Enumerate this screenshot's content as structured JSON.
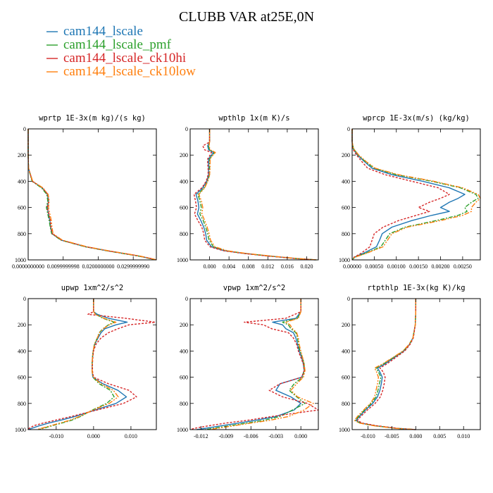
{
  "figure": {
    "title": "CLUBB VAR at25E,0N"
  },
  "legend": [
    {
      "label": "cam144_lscale",
      "color": "#1f77b4"
    },
    {
      "label": "cam144_lscale_pmf",
      "color": "#2ca02c"
    },
    {
      "label": "cam144_lscale_ck10hi",
      "color": "#d62728"
    },
    {
      "label": "cam144_lscale_ck10low",
      "color": "#ff7f0e"
    }
  ],
  "chart_data": [
    {
      "type": "line",
      "title": "wprtp  1E-3x(m kg)/(s kg)",
      "xlim": [
        0,
        0.0366
      ],
      "ylim": [
        0,
        1000
      ],
      "y_inverted": true,
      "xticks": [
        0,
        0.01,
        0.02,
        0.03
      ],
      "xtick_labels": [
        "0.0000000000",
        "0.0099999998",
        "0.0200000000",
        "0.0299999990"
      ],
      "yticks": [
        0,
        200,
        400,
        600,
        800,
        1000
      ],
      "ytick_labels": [
        "0",
        "200",
        "400",
        "600",
        "800",
        "1000"
      ],
      "y": [
        0,
        100,
        200,
        300,
        400,
        450,
        500,
        550,
        600,
        650,
        700,
        750,
        800,
        850,
        900,
        930,
        950,
        970,
        990,
        1000
      ],
      "series": [
        {
          "name": "cam144_lscale",
          "values": [
            0,
            0,
            0,
            0.0001,
            0.0012,
            0.004,
            0.0055,
            0.0058,
            0.0055,
            0.0058,
            0.0062,
            0.0064,
            0.0068,
            0.0095,
            0.0165,
            0.0225,
            0.027,
            0.0315,
            0.035,
            0.0366
          ]
        },
        {
          "name": "cam144_lscale_pmf",
          "values": [
            0,
            0,
            0,
            0.0001,
            0.0011,
            0.0038,
            0.0053,
            0.0056,
            0.0052,
            0.0056,
            0.006,
            0.0063,
            0.0067,
            0.0094,
            0.0163,
            0.0223,
            0.0268,
            0.0313,
            0.0348,
            0.0364
          ]
        },
        {
          "name": "cam144_lscale_ck10hi",
          "values": [
            0,
            0,
            0,
            0.0001,
            0.0012,
            0.0041,
            0.0056,
            0.0059,
            0.0054,
            0.0059,
            0.0063,
            0.0065,
            0.0069,
            0.0096,
            0.0166,
            0.0226,
            0.0271,
            0.0316,
            0.0351,
            0.0366
          ]
        },
        {
          "name": "cam144_lscale_ck10low",
          "values": [
            0,
            0,
            0,
            0.0001,
            0.0013,
            0.0042,
            0.0057,
            0.006,
            0.0058,
            0.0062,
            0.0066,
            0.0068,
            0.0071,
            0.0098,
            0.0168,
            0.0228,
            0.0273,
            0.0318,
            0.0352,
            0.0366
          ]
        }
      ]
    },
    {
      "type": "line",
      "title": "wpthlp  1x(m K)/s",
      "xlim": [
        -0.004,
        0.0224
      ],
      "ylim": [
        0,
        1000
      ],
      "y_inverted": true,
      "xticks": [
        0,
        0.004,
        0.008,
        0.012,
        0.016,
        0.02
      ],
      "xtick_labels": [
        "0.000",
        "0.004",
        "0.008",
        "0.012",
        "0.016",
        "0.020"
      ],
      "yticks": [
        0,
        200,
        400,
        600,
        800,
        1000
      ],
      "ytick_labels": [
        "0",
        "200",
        "400",
        "600",
        "800",
        "1000"
      ],
      "y": [
        0,
        100,
        130,
        160,
        180,
        200,
        230,
        260,
        300,
        350,
        400,
        450,
        500,
        550,
        600,
        650,
        700,
        750,
        800,
        850,
        900,
        930,
        950,
        970,
        990,
        1000
      ],
      "series": [
        {
          "name": "cam144_lscale",
          "values": [
            0,
            0,
            -0.0004,
            -0.0002,
            0.0008,
            0.0004,
            -0.0002,
            -0.0002,
            -0.0002,
            -0.0002,
            -0.0006,
            -0.0014,
            -0.0028,
            -0.0024,
            -0.0022,
            -0.0025,
            -0.0018,
            -0.0012,
            -0.0008,
            -0.0006,
            0.0004,
            0.003,
            0.007,
            0.012,
            0.018,
            0.0218
          ]
        },
        {
          "name": "cam144_lscale_pmf",
          "values": [
            0,
            0,
            -0.0002,
            0,
            0.0011,
            0.0006,
            0,
            0,
            0,
            0,
            -0.0004,
            -0.0011,
            -0.0024,
            -0.002,
            -0.0017,
            -0.002,
            -0.0013,
            -0.0008,
            -0.0004,
            -0.0001,
            0.0008,
            0.0033,
            0.0072,
            0.0122,
            0.018,
            0.022
          ]
        },
        {
          "name": "cam144_lscale_ck10hi",
          "values": [
            0,
            0,
            -0.0014,
            -0.001,
            0.0004,
            0.0001,
            -0.0004,
            -0.0004,
            -0.0003,
            -0.0003,
            -0.0007,
            -0.0016,
            -0.0032,
            -0.0029,
            -0.0027,
            -0.0031,
            -0.0024,
            -0.0016,
            -0.0012,
            -0.001,
            0.0001,
            0.0028,
            0.0068,
            0.0118,
            0.0178,
            0.0216
          ]
        },
        {
          "name": "cam144_lscale_ck10low",
          "values": [
            0,
            0,
            -0.0001,
            0.0001,
            0.0012,
            0.0007,
            0.0001,
            0.0001,
            0.0001,
            0,
            -0.0004,
            -0.001,
            -0.0022,
            -0.0017,
            -0.0014,
            -0.0016,
            -0.001,
            -0.0005,
            -0.0001,
            0.0002,
            0.0011,
            0.0036,
            0.0074,
            0.0124,
            0.0182,
            0.0222
          ]
        }
      ]
    },
    {
      "type": "line",
      "title": "wprcp  1E-3x(m/s) (kg/kg)",
      "xlim": [
        0,
        0.0029
      ],
      "ylim": [
        0,
        1000
      ],
      "y_inverted": true,
      "xticks": [
        0,
        0.0005,
        0.001,
        0.0015,
        0.002,
        0.0025
      ],
      "xtick_labels": [
        "0.00000",
        "0.00050",
        "0.00100",
        "0.00150",
        "0.00200",
        "0.00250"
      ],
      "yticks": [
        0,
        200,
        400,
        600,
        800,
        1000
      ],
      "ytick_labels": [
        "0",
        "200",
        "400",
        "600",
        "800",
        "1000"
      ],
      "y": [
        0,
        100,
        150,
        200,
        250,
        300,
        350,
        400,
        450,
        500,
        530,
        560,
        600,
        630,
        660,
        700,
        750,
        800,
        850,
        900,
        950,
        980,
        1000
      ],
      "series": [
        {
          "name": "cam144_lscale",
          "values": [
            0,
            0,
            2e-05,
            0.00012,
            0.00028,
            0.00045,
            0.0009,
            0.0016,
            0.0022,
            0.00255,
            0.0024,
            0.0022,
            0.002,
            0.0022,
            0.0018,
            0.00135,
            0.0009,
            0.00068,
            0.00062,
            0.00055,
            0.00025,
            5e-05,
            0
          ]
        },
        {
          "name": "cam144_lscale_pmf",
          "values": [
            0,
            0,
            3e-05,
            0.00014,
            0.0003,
            0.0005,
            0.001,
            0.0018,
            0.00245,
            0.0028,
            0.00285,
            0.0027,
            0.00255,
            0.0026,
            0.0024,
            0.0019,
            0.0012,
            0.00085,
            0.00075,
            0.00065,
            0.0003,
            6e-05,
            0
          ]
        },
        {
          "name": "cam144_lscale_ck10hi",
          "values": [
            0,
            0,
            1e-05,
            0.0001,
            0.00022,
            0.00035,
            0.00075,
            0.00135,
            0.00195,
            0.0022,
            0.002,
            0.00175,
            0.0015,
            0.00175,
            0.00145,
            0.00105,
            0.0007,
            0.0005,
            0.00045,
            0.0004,
            0.0002,
            4e-05,
            0
          ]
        },
        {
          "name": "cam144_lscale_ck10low",
          "values": [
            0,
            0,
            3e-05,
            0.00015,
            0.00032,
            0.00052,
            0.00105,
            0.00185,
            0.0025,
            0.00285,
            0.0029,
            0.0028,
            0.0027,
            0.0027,
            0.0025,
            0.002,
            0.00125,
            0.0009,
            0.0008,
            0.0007,
            0.00032,
            6e-05,
            0
          ]
        }
      ]
    },
    {
      "type": "line",
      "title": "upwp  1xm^2/s^2",
      "xlim": [
        -0.0175,
        0.0168
      ],
      "ylim": [
        0,
        1000
      ],
      "y_inverted": true,
      "xticks": [
        -0.01,
        0,
        0.01
      ],
      "xtick_labels": [
        "-0.010",
        "0.000",
        "0.010"
      ],
      "yticks": [
        0,
        200,
        400,
        600,
        800,
        1000
      ],
      "ytick_labels": [
        "0",
        "200",
        "400",
        "600",
        "800",
        "1000"
      ],
      "y": [
        0,
        100,
        120,
        150,
        180,
        200,
        230,
        260,
        300,
        350,
        400,
        450,
        500,
        550,
        600,
        650,
        700,
        750,
        800,
        850,
        900,
        930,
        950,
        970,
        990,
        1000
      ],
      "series": [
        {
          "name": "cam144_lscale",
          "values": [
            0,
            0,
            0.001,
            0.004,
            0.009,
            0.006,
            0.003,
            0.002,
            0.0012,
            0.0003,
            -0.0001,
            -0.0003,
            -0.0004,
            -0.0004,
            -0.0002,
            0.0025,
            0.0065,
            0.0088,
            0.006,
            0.0005,
            -0.005,
            -0.009,
            -0.012,
            -0.0145,
            -0.0165,
            -0.0175
          ]
        },
        {
          "name": "cam144_lscale_pmf",
          "values": [
            0,
            0,
            0.0006,
            0.0025,
            0.0055,
            0.004,
            0.0025,
            0.0015,
            0.001,
            0.0002,
            -0.0001,
            -0.0003,
            -0.0004,
            -0.0004,
            -0.0002,
            0.0015,
            0.0045,
            0.0055,
            0.0035,
            -0.0003,
            -0.0035,
            -0.006,
            -0.0085,
            -0.011,
            -0.0135,
            -0.0148
          ]
        },
        {
          "name": "cam144_lscale_ck10hi",
          "values": [
            0,
            0,
            -0.0015,
            0.0085,
            0.0165,
            0.0095,
            0.0065,
            0.004,
            0.002,
            0.0006,
            0,
            -0.0002,
            -0.0003,
            -0.0003,
            0,
            0.004,
            0.0095,
            0.0115,
            0.008,
            0.001,
            -0.006,
            -0.0105,
            -0.0135,
            -0.016,
            -0.0172,
            -0.0178
          ]
        },
        {
          "name": "cam144_lscale_ck10low",
          "values": [
            0,
            0,
            0.0005,
            0.0028,
            0.006,
            0.0042,
            0.0026,
            0.0016,
            0.001,
            0.0002,
            -0.0001,
            -0.0003,
            -0.0004,
            -0.0004,
            -0.0001,
            0.002,
            0.0053,
            0.0066,
            0.0042,
            -0.0001,
            -0.0038,
            -0.0065,
            -0.009,
            -0.0115,
            -0.014,
            -0.0152
          ]
        }
      ]
    },
    {
      "type": "line",
      "title": "vpwp  1xm^2/s^2",
      "xlim": [
        -0.0133,
        0.0021
      ],
      "ylim": [
        0,
        1000
      ],
      "y_inverted": true,
      "xticks": [
        -0.012,
        -0.009,
        -0.006,
        -0.003,
        0
      ],
      "xtick_labels": [
        "-0.012",
        "-0.009",
        "-0.006",
        "-0.003",
        "0.000"
      ],
      "yticks": [
        0,
        200,
        400,
        600,
        800,
        1000
      ],
      "ytick_labels": [
        "0",
        "200",
        "400",
        "600",
        "800",
        "1000"
      ],
      "y": [
        0,
        100,
        150,
        180,
        200,
        230,
        260,
        300,
        350,
        400,
        450,
        500,
        550,
        600,
        650,
        700,
        750,
        800,
        850,
        900,
        930,
        950,
        970,
        990,
        1000
      ],
      "series": [
        {
          "name": "cam144_lscale",
          "values": [
            0,
            0,
            -0.0006,
            -0.0034,
            -0.0022,
            -0.0018,
            -0.0009,
            -0.0006,
            -0.0004,
            -0.0002,
            0.0001,
            0.0003,
            0.0004,
            0.0001,
            -0.0025,
            -0.003,
            -0.0012,
            0,
            -0.0008,
            -0.003,
            -0.0055,
            -0.0075,
            -0.0095,
            -0.0115,
            -0.0125
          ]
        },
        {
          "name": "cam144_lscale_pmf",
          "values": [
            0,
            0,
            -0.0004,
            -0.0022,
            -0.0015,
            -0.0012,
            -0.0006,
            -0.0004,
            -0.0003,
            -0.0001,
            0.0002,
            0.0004,
            0.0004,
            0.0002,
            -0.0008,
            -0.0014,
            -0.0005,
            0.0005,
            -0.001,
            -0.0025,
            -0.0045,
            -0.0065,
            -0.0085,
            -0.0105,
            -0.0115
          ]
        },
        {
          "name": "cam144_lscale_ck10hi",
          "values": [
            0,
            0,
            -0.0018,
            -0.0068,
            -0.0045,
            -0.0035,
            -0.0015,
            -0.0009,
            -0.0005,
            -0.0003,
            0,
            0.0003,
            0.0004,
            0.0001,
            -0.0025,
            -0.0038,
            -0.0022,
            0.0008,
            0.0021,
            -0.0035,
            -0.0065,
            -0.009,
            -0.011,
            -0.0128,
            -0.0133
          ]
        },
        {
          "name": "cam144_lscale_ck10low",
          "values": [
            0,
            0,
            -0.0003,
            -0.0018,
            -0.0013,
            -0.001,
            -0.0005,
            -0.0003,
            -0.0002,
            0,
            0.0002,
            0.0004,
            0.0005,
            0.0003,
            -0.0005,
            -0.0012,
            -0.0004,
            0.0015,
            0.0004,
            -0.0015,
            -0.0038,
            -0.006,
            -0.008,
            -0.01,
            -0.011
          ]
        }
      ]
    },
    {
      "type": "line",
      "title": "rtpthlp  1E-3x(kg K)/kg",
      "xlim": [
        -0.0133,
        0.0135
      ],
      "ylim": [
        0,
        1000
      ],
      "y_inverted": true,
      "xticks": [
        -0.01,
        -0.005,
        0,
        0.005,
        0.01
      ],
      "xtick_labels": [
        "-0.010",
        "-0.005",
        "0.000",
        "0.005",
        "0.010"
      ],
      "yticks": [
        0,
        200,
        400,
        600,
        800,
        1000
      ],
      "ytick_labels": [
        "0",
        "200",
        "400",
        "600",
        "800",
        "1000"
      ],
      "y": [
        0,
        100,
        200,
        300,
        350,
        400,
        450,
        500,
        530,
        560,
        600,
        650,
        700,
        750,
        800,
        850,
        900,
        930,
        950,
        970,
        990,
        1000
      ],
      "series": [
        {
          "name": "cam144_lscale",
          "values": [
            0,
            0,
            -0.0001,
            -0.0006,
            -0.0013,
            -0.0025,
            -0.0045,
            -0.0065,
            -0.008,
            -0.0075,
            -0.007,
            -0.0072,
            -0.0075,
            -0.008,
            -0.009,
            -0.0105,
            -0.0118,
            -0.0125,
            -0.0115,
            -0.0085,
            -0.004,
            0
          ]
        },
        {
          "name": "cam144_lscale_pmf",
          "values": [
            0,
            0,
            -0.0001,
            -0.0006,
            -0.0014,
            -0.0026,
            -0.0047,
            -0.0068,
            -0.0083,
            -0.0078,
            -0.0073,
            -0.0076,
            -0.0079,
            -0.0083,
            -0.0093,
            -0.0107,
            -0.012,
            -0.0126,
            -0.0117,
            -0.0087,
            -0.0042,
            0
          ]
        },
        {
          "name": "cam144_lscale_ck10hi",
          "values": [
            0,
            0,
            -0.0001,
            -0.0005,
            -0.0012,
            -0.0023,
            -0.0042,
            -0.0061,
            -0.0075,
            -0.0068,
            -0.0064,
            -0.0066,
            -0.0069,
            -0.0074,
            -0.0085,
            -0.0101,
            -0.0115,
            -0.0122,
            -0.0112,
            -0.0082,
            -0.0038,
            0
          ]
        },
        {
          "name": "cam144_lscale_ck10low",
          "values": [
            0,
            0,
            -0.0001,
            -0.0006,
            -0.0014,
            -0.0027,
            -0.0048,
            -0.007,
            -0.0086,
            -0.0082,
            -0.0078,
            -0.008,
            -0.0083,
            -0.0086,
            -0.0095,
            -0.0109,
            -0.0122,
            -0.0128,
            -0.0118,
            -0.0088,
            -0.0043,
            0
          ]
        }
      ]
    }
  ]
}
